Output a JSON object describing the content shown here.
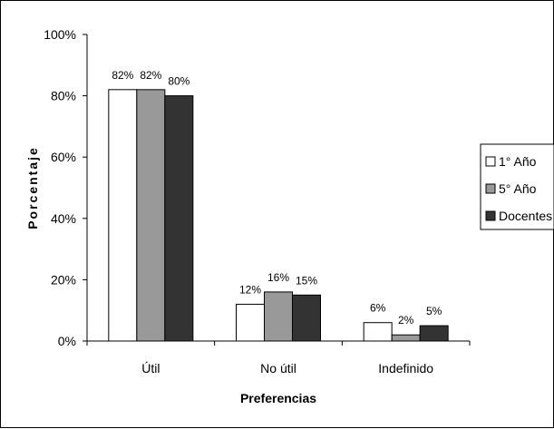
{
  "chart_data": {
    "type": "bar",
    "categories": [
      "Útil",
      "No útil",
      "Indefinido"
    ],
    "series": [
      {
        "name": "1° Año",
        "values": [
          82,
          12,
          6
        ],
        "color": "#ffffff"
      },
      {
        "name": "5° Año",
        "values": [
          82,
          16,
          2
        ],
        "color": "#999999"
      },
      {
        "name": "Docentes",
        "values": [
          80,
          15,
          5
        ],
        "color": "#333333"
      }
    ],
    "data_labels": [
      [
        "82%",
        "12%",
        "6%"
      ],
      [
        "82%",
        "16%",
        "2%"
      ],
      [
        "80%",
        "15%",
        "5%"
      ]
    ],
    "xlabel": "Preferencias",
    "ylabel": "Porcentaje",
    "ylim": [
      0,
      100
    ],
    "yticks": [
      0,
      20,
      40,
      60,
      80,
      100
    ],
    "ytick_labels": [
      "0%",
      "20%",
      "40%",
      "60%",
      "80%",
      "100%"
    ],
    "grid": false,
    "legend_position": "right"
  }
}
